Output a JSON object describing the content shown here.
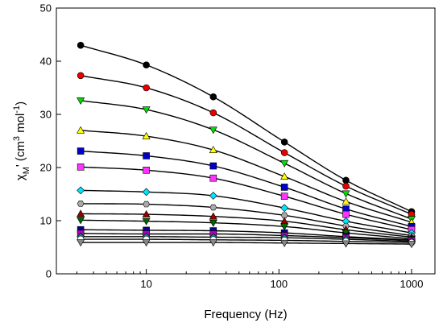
{
  "chart_data": {
    "type": "scatter",
    "title": "",
    "xlabel": "Frequency (Hz)",
    "ylabel": "χM' (cm3 mol-1)",
    "ylabel_parts": {
      "main": "χ",
      "sub": "M",
      "prime": "' (cm",
      "sup1": "3",
      "mid": " mol",
      "sup2": "-1",
      "end": ")"
    },
    "x_scale": "log",
    "xlim": [
      2.1,
      1500
    ],
    "ylim": [
      0,
      50
    ],
    "x_ticks": [
      10,
      100,
      1000
    ],
    "x_tick_labels": [
      "10",
      "100",
      "1000"
    ],
    "y_ticks": [
      0,
      10,
      20,
      30,
      40,
      50
    ],
    "y_tick_labels": [
      "0",
      "10",
      "20",
      "30",
      "40",
      "50"
    ],
    "grid": false,
    "legend": "none",
    "x": [
      3.2,
      10,
      32,
      110,
      320,
      1000
    ],
    "series": [
      {
        "color": "#000000",
        "marker": "circle",
        "values": [
          43.0,
          39.3,
          33.3,
          24.8,
          17.6,
          11.7
        ]
      },
      {
        "color": "#e60000",
        "marker": "circle",
        "values": [
          37.3,
          35.0,
          30.3,
          22.8,
          16.5,
          11.2
        ]
      },
      {
        "color": "#00dd00",
        "marker": "triangle-down",
        "values": [
          32.6,
          30.9,
          27.1,
          20.8,
          15.1,
          10.3
        ]
      },
      {
        "color": "#ffff00",
        "marker": "triangle-up",
        "values": [
          27.0,
          25.9,
          23.3,
          18.3,
          13.6,
          9.7
        ]
      },
      {
        "color": "#0000cc",
        "marker": "square",
        "values": [
          23.1,
          22.2,
          20.3,
          16.3,
          12.2,
          8.9
        ]
      },
      {
        "color": "#ff33ff",
        "marker": "square",
        "values": [
          20.1,
          19.5,
          18.0,
          14.6,
          11.2,
          8.3
        ]
      },
      {
        "color": "#00e5ff",
        "marker": "diamond",
        "values": [
          15.7,
          15.4,
          14.7,
          12.4,
          9.9,
          7.7
        ]
      },
      {
        "color": "#aaaaaa",
        "marker": "hexagon",
        "values": [
          13.2,
          13.1,
          12.5,
          11.0,
          9.0,
          7.2
        ]
      },
      {
        "color": "#990000",
        "marker": "triangle-up",
        "values": [
          11.3,
          11.2,
          10.8,
          9.9,
          8.3,
          6.9
        ]
      },
      {
        "color": "#006600",
        "marker": "triangle-down",
        "values": [
          10.1,
          9.9,
          9.6,
          8.9,
          7.7,
          6.6
        ]
      },
      {
        "color": "#000099",
        "marker": "square",
        "values": [
          8.3,
          8.2,
          8.1,
          7.7,
          7.0,
          6.4
        ]
      },
      {
        "color": "#b300b3",
        "marker": "square",
        "values": [
          7.6,
          7.5,
          7.5,
          7.2,
          6.8,
          6.3
        ]
      },
      {
        "color": "#008b8b",
        "marker": "diamond",
        "values": [
          7.0,
          7.0,
          6.9,
          6.8,
          6.5,
          6.1
        ]
      },
      {
        "color": "#ffffff",
        "marker": "circle",
        "values": [
          6.5,
          6.5,
          6.4,
          6.3,
          6.1,
          5.9
        ]
      },
      {
        "color": "#888888",
        "marker": "triangle-down",
        "values": [
          5.9,
          5.9,
          5.9,
          5.8,
          5.7,
          5.6
        ]
      }
    ]
  }
}
